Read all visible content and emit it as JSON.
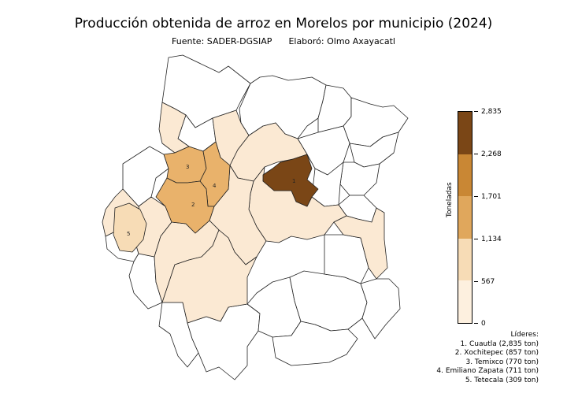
{
  "title": "Producción obtenida de arroz en Morelos por municipio (2024)",
  "subtitle": {
    "source": "Fuente: SADER-DGSIAP",
    "author": "Elaboró: Olmo Axayacatl"
  },
  "colorbar": {
    "label": "Toneladas",
    "ticks": [
      "2,835",
      "2,268",
      "1,701",
      "1,134",
      "567",
      "0"
    ],
    "tick_values": [
      2835,
      2268,
      1701,
      1134,
      567,
      0
    ],
    "colors": [
      "#fdf0df",
      "#f7dcb6",
      "#e9b26b",
      "#d3943f",
      "#a6671f",
      "#7a4616"
    ]
  },
  "leaders": {
    "heading": "Líderes:",
    "items": [
      "1. Cuautla (2,835 ton)",
      "2. Xochitepec (857 ton)",
      "3. Temixco (770 ton)",
      "4. Emiliano Zapata (711 ton)",
      "5. Tetecala (309 ton)"
    ]
  },
  "map_labels": [
    "1",
    "2",
    "3",
    "4",
    "5"
  ]
}
